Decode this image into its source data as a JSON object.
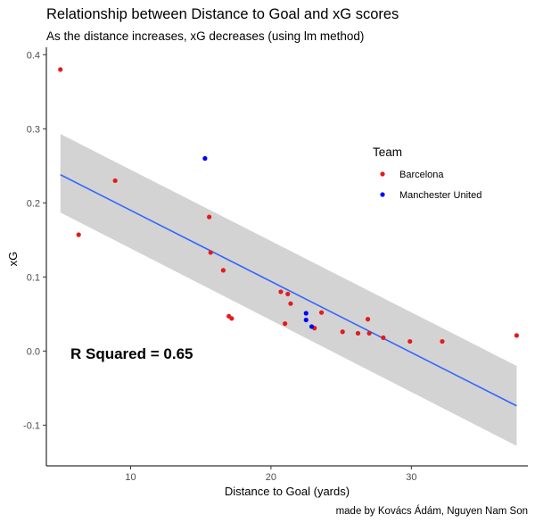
{
  "chart_data": {
    "type": "scatter",
    "title": "Relationship between Distance to Goal and xG scores",
    "subtitle": "As the distance increases, xG decreases (using lm method)",
    "caption": "made by Kovács Ádám, Nguyen Nam Son",
    "xlabel": "Distance to Goal (yards)",
    "ylabel": "xG",
    "xlim": [
      4.0,
      38.3
    ],
    "ylim": [
      -0.155,
      0.41
    ],
    "x_ticks": [
      10,
      20,
      30
    ],
    "y_ticks": [
      -0.1,
      0.0,
      0.1,
      0.2,
      0.3,
      0.4
    ],
    "x_tick_labels": [
      "10",
      "20",
      "30"
    ],
    "y_tick_labels": [
      "-0.1",
      "0.0",
      "0.1",
      "0.2",
      "0.3",
      "0.4"
    ],
    "grid": false,
    "legend_placement": "right, inside plot",
    "legend_title": "Team",
    "annotation": "R Squared = 0.65",
    "series": [
      {
        "name": "Barcelona",
        "color": "#e41a1c",
        "points": [
          {
            "x": 5.0,
            "y": 0.38
          },
          {
            "x": 6.3,
            "y": 0.157
          },
          {
            "x": 8.9,
            "y": 0.23
          },
          {
            "x": 15.6,
            "y": 0.181
          },
          {
            "x": 15.7,
            "y": 0.133
          },
          {
            "x": 16.6,
            "y": 0.109
          },
          {
            "x": 17.0,
            "y": 0.047
          },
          {
            "x": 17.2,
            "y": 0.044
          },
          {
            "x": 20.7,
            "y": 0.08
          },
          {
            "x": 21.0,
            "y": 0.037
          },
          {
            "x": 21.2,
            "y": 0.077
          },
          {
            "x": 21.4,
            "y": 0.064
          },
          {
            "x": 23.1,
            "y": 0.031
          },
          {
            "x": 23.6,
            "y": 0.052
          },
          {
            "x": 25.1,
            "y": 0.026
          },
          {
            "x": 26.2,
            "y": 0.024
          },
          {
            "x": 26.9,
            "y": 0.043
          },
          {
            "x": 27.0,
            "y": 0.024
          },
          {
            "x": 28.0,
            "y": 0.018
          },
          {
            "x": 29.9,
            "y": 0.013
          },
          {
            "x": 32.2,
            "y": 0.013
          },
          {
            "x": 37.5,
            "y": 0.021
          }
        ]
      },
      {
        "name": "Manchester United",
        "color": "#0000ff",
        "points": [
          {
            "x": 15.3,
            "y": 0.26
          },
          {
            "x": 22.5,
            "y": 0.051
          },
          {
            "x": 22.5,
            "y": 0.042
          },
          {
            "x": 22.9,
            "y": 0.033
          }
        ]
      }
    ],
    "trend": {
      "method": "lm",
      "color": "#3366ff",
      "band_color": "#d3d3d3",
      "x": [
        5.0,
        37.5
      ],
      "fit": [
        0.238,
        -0.074
      ],
      "lower": [
        0.187,
        -0.128
      ],
      "upper": [
        0.293,
        -0.02
      ]
    }
  }
}
